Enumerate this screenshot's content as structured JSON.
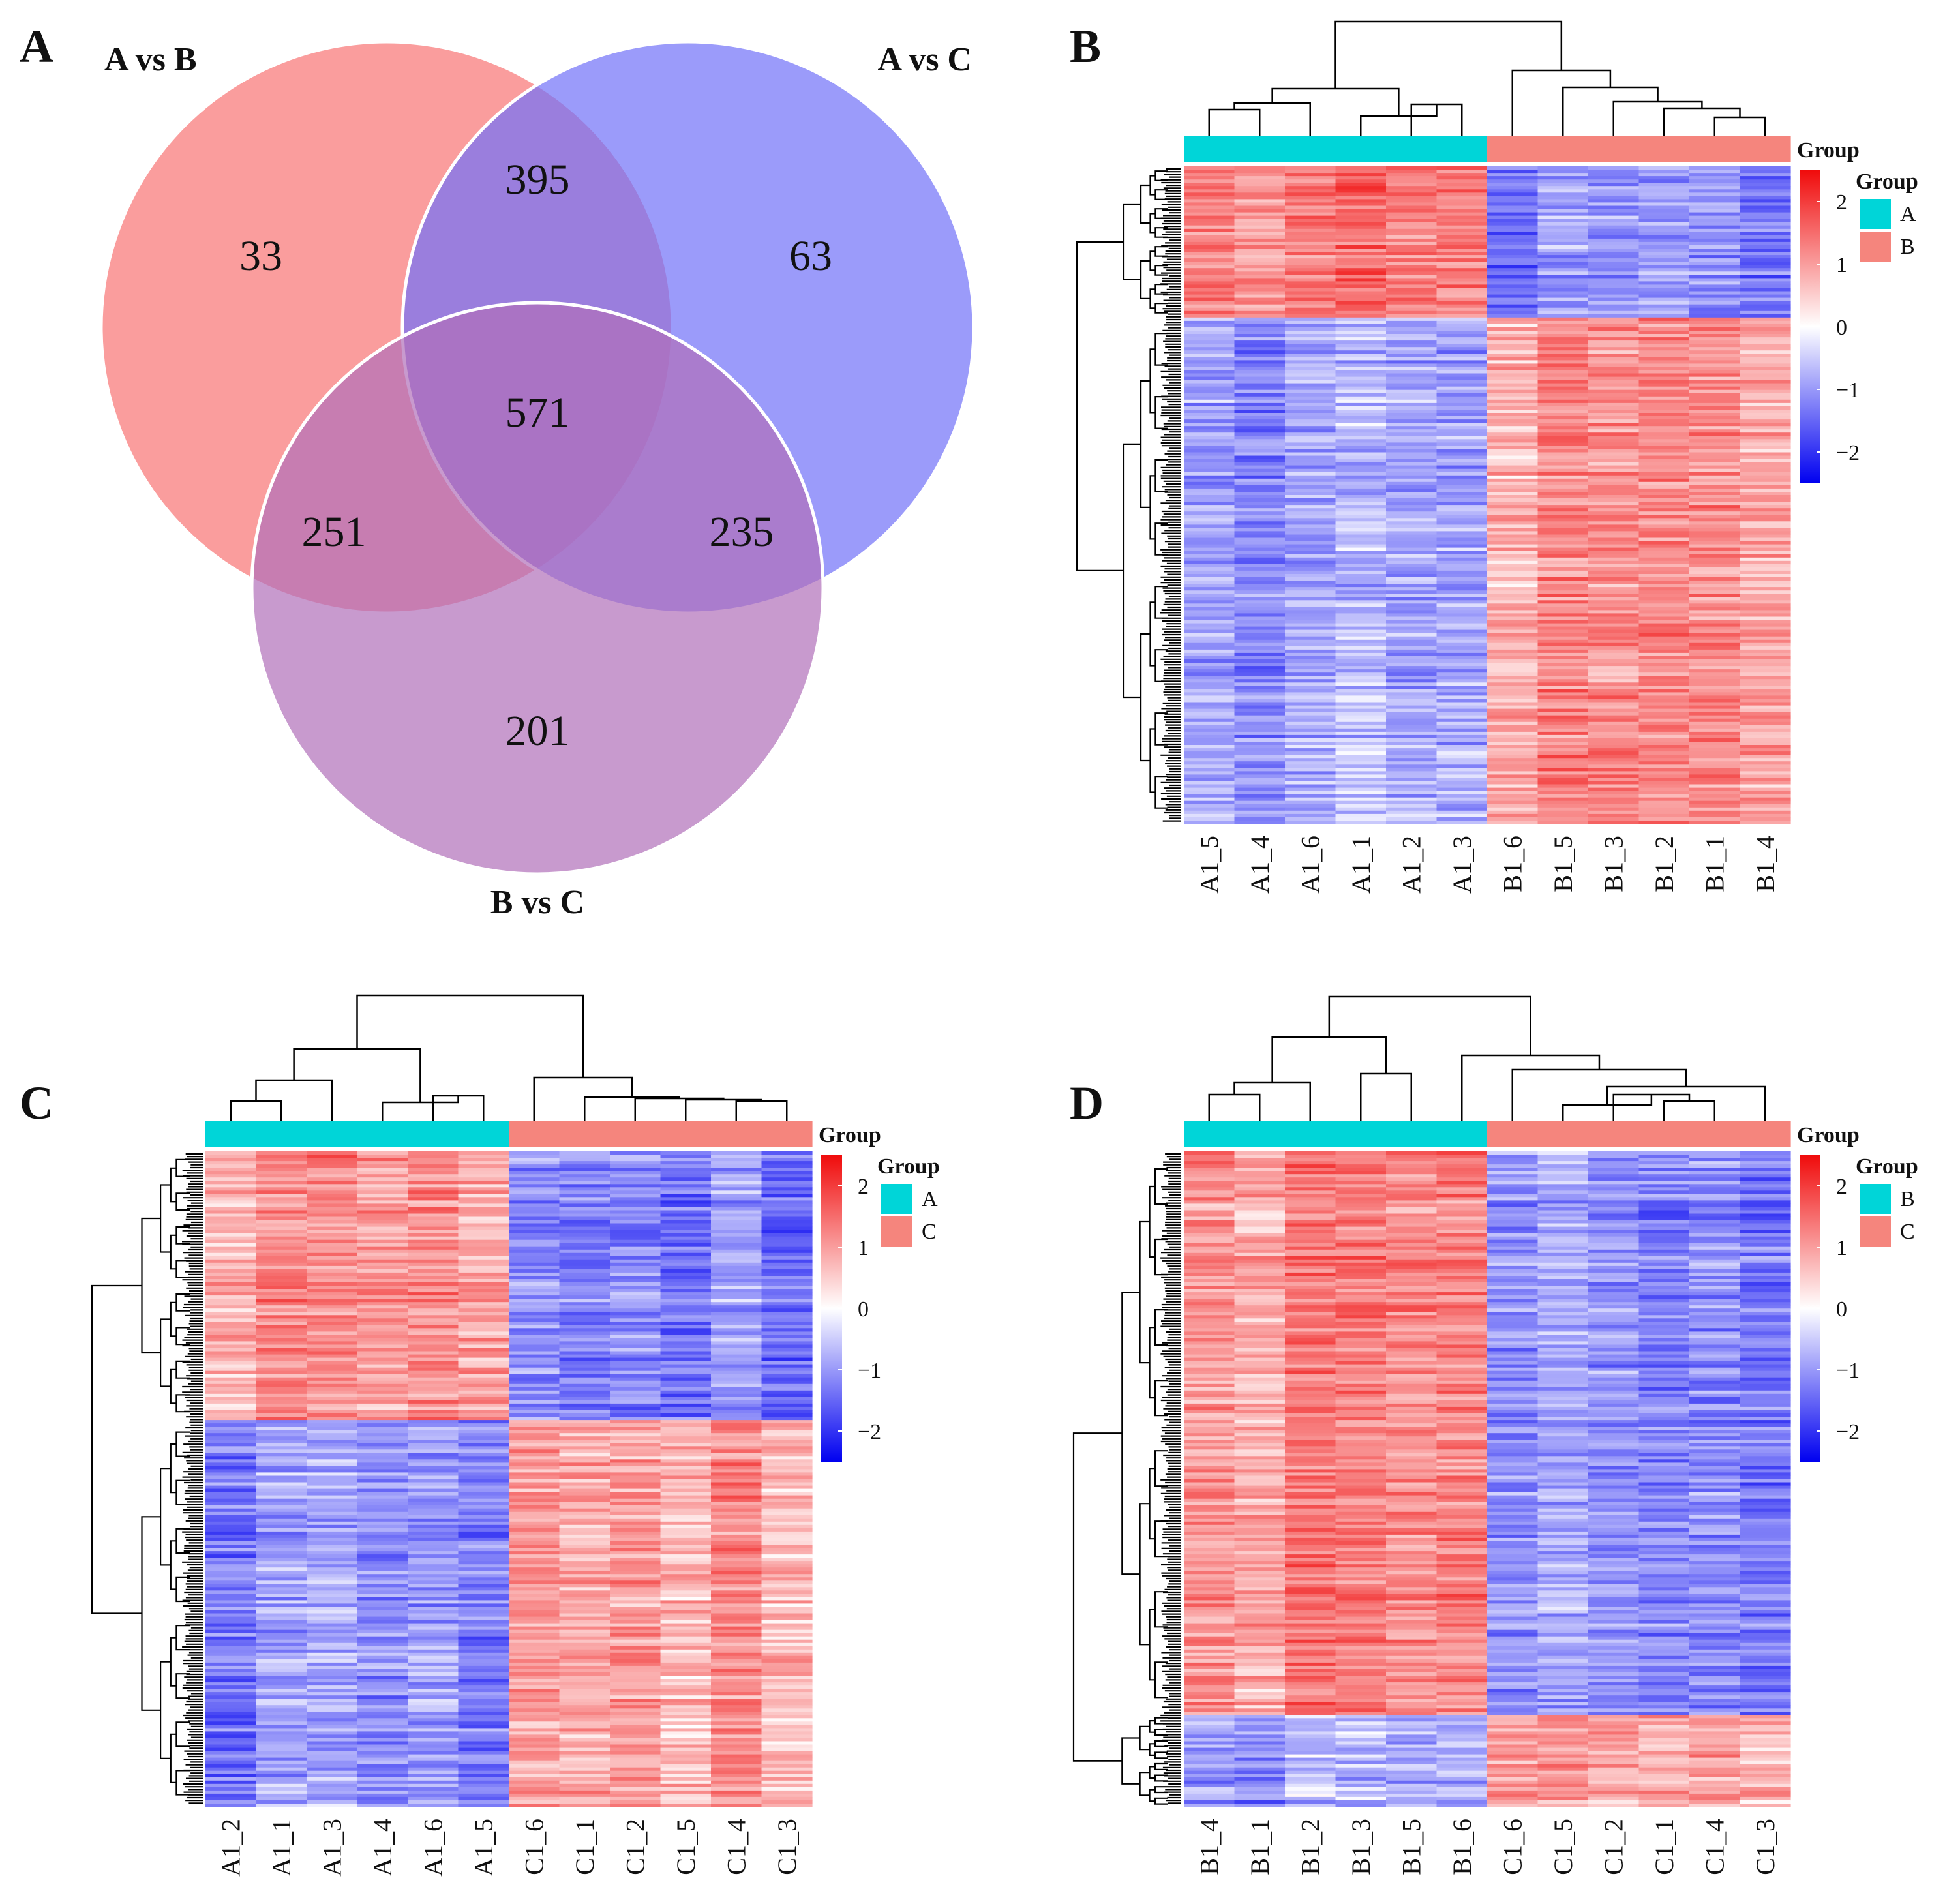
{
  "panel_letters": [
    "A",
    "B",
    "C",
    "D"
  ],
  "colors": {
    "venn_set1": "#F87474",
    "venn_set2": "#7070F8",
    "venn_set3": "#B06FB9",
    "group_teal": "#00D5D8",
    "group_salmon": "#F5857D",
    "heat_high": "#F00B0B",
    "heat_mid": "#FFFFFF",
    "heat_low": "#0000F0"
  },
  "icons": {
    "dendrogram": "dendrogram-icon",
    "colorbar": "colorbar-icon"
  },
  "chart_data": [
    {
      "type": "venn",
      "panel": "A",
      "sets": [
        "A vs B",
        "A vs C",
        "B vs C"
      ],
      "regions": [
        {
          "sets": [
            "A vs B"
          ],
          "value": 33
        },
        {
          "sets": [
            "A vs C"
          ],
          "value": 63
        },
        {
          "sets": [
            "B vs C"
          ],
          "value": 201
        },
        {
          "sets": [
            "A vs B",
            "A vs C"
          ],
          "value": 395
        },
        {
          "sets": [
            "A vs B",
            "B vs C"
          ],
          "value": 251
        },
        {
          "sets": [
            "A vs C",
            "B vs C"
          ],
          "value": 235
        },
        {
          "sets": [
            "A vs B",
            "A vs C",
            "B vs C"
          ],
          "value": 571
        }
      ]
    },
    {
      "type": "heatmap",
      "panel": "B",
      "columns": [
        "A1_5",
        "A1_4",
        "A1_6",
        "A1_1",
        "A1_2",
        "A1_3",
        "B1_6",
        "B1_5",
        "B1_3",
        "B1_2",
        "B1_1",
        "B1_4"
      ],
      "column_groups": [
        "A",
        "A",
        "A",
        "A",
        "A",
        "A",
        "B",
        "B",
        "B",
        "B",
        "B",
        "B"
      ],
      "annotation_title": "Group",
      "legend_title": "Group",
      "legend_entries": [
        {
          "label": "A",
          "color": "#00D5D8"
        },
        {
          "label": "B",
          "color": "#F5857D"
        }
      ],
      "colorbar_ticks": [
        "2",
        "1",
        "0",
        "−1",
        "−2"
      ],
      "colorbar_range": [
        -2.5,
        2.5
      ],
      "row_clusters": [
        {
          "fraction": 0.23,
          "first_group_z": 1.2
        },
        {
          "fraction": 0.77,
          "first_group_z": -1.0
        }
      ]
    },
    {
      "type": "heatmap",
      "panel": "C",
      "columns": [
        "A1_2",
        "A1_1",
        "A1_3",
        "A1_4",
        "A1_6",
        "A1_5",
        "C1_6",
        "C1_1",
        "C1_2",
        "C1_5",
        "C1_4",
        "C1_3"
      ],
      "column_groups": [
        "A",
        "A",
        "A",
        "A",
        "A",
        "A",
        "C",
        "C",
        "C",
        "C",
        "C",
        "C"
      ],
      "annotation_title": "Group",
      "legend_title": "Group",
      "legend_entries": [
        {
          "label": "A",
          "color": "#00D5D8"
        },
        {
          "label": "C",
          "color": "#F5857D"
        }
      ],
      "colorbar_ticks": [
        "2",
        "1",
        "0",
        "−1",
        "−2"
      ],
      "colorbar_range": [
        -2.5,
        2.5
      ],
      "row_clusters": [
        {
          "fraction": 0.41,
          "first_group_z": 1.1
        },
        {
          "fraction": 0.59,
          "first_group_z": -1.0
        }
      ]
    },
    {
      "type": "heatmap",
      "panel": "D",
      "columns": [
        "B1_4",
        "B1_1",
        "B1_2",
        "B1_3",
        "B1_5",
        "B1_6",
        "C1_6",
        "C1_5",
        "C1_2",
        "C1_1",
        "C1_4",
        "C1_3"
      ],
      "column_groups": [
        "B",
        "B",
        "B",
        "B",
        "B",
        "B",
        "C",
        "C",
        "C",
        "C",
        "C",
        "C"
      ],
      "annotation_title": "Group",
      "legend_title": "Group",
      "legend_entries": [
        {
          "label": "B",
          "color": "#00D5D8"
        },
        {
          "label": "C",
          "color": "#F5857D"
        }
      ],
      "colorbar_ticks": [
        "2",
        "1",
        "0",
        "−1",
        "−2"
      ],
      "colorbar_range": [
        -2.5,
        2.5
      ],
      "row_clusters": [
        {
          "fraction": 0.86,
          "first_group_z": 1.1
        },
        {
          "fraction": 0.14,
          "first_group_z": -0.9
        }
      ]
    }
  ]
}
